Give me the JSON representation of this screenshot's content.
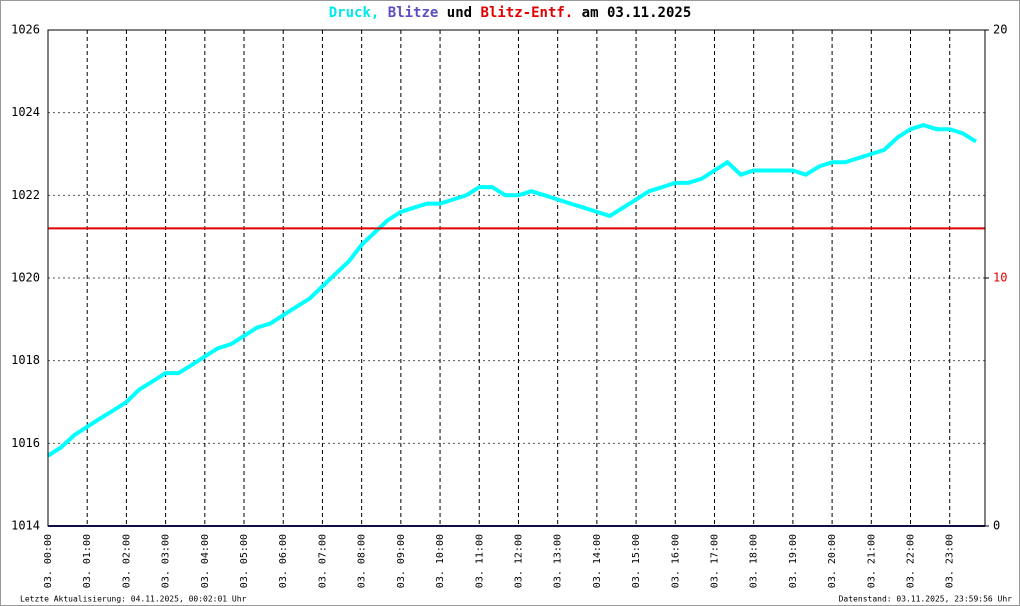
{
  "chart_data": {
    "type": "line",
    "title": [
      {
        "text": "Druck,",
        "color": "#00e8e8"
      },
      {
        "text": "Blitze",
        "color": "#5a4fc0"
      },
      {
        "text": "und",
        "color": "#000000"
      },
      {
        "text": "Blitz-Entf.",
        "color": "#e00000"
      },
      {
        "text": "am 03.11.2025",
        "color": "#000000"
      }
    ],
    "footer_left": "Letzte Aktualisierung: 04.11.2025, 00:02:01 Uhr",
    "footer_right": "Datenstand: 03.11.2025, 23:59:56 Uhr",
    "xlim": [
      0,
      23.9
    ],
    "xticks": [
      {
        "value": 0,
        "label": "03. 00:00"
      },
      {
        "value": 1,
        "label": "03. 01:00"
      },
      {
        "value": 2,
        "label": "03. 02:00"
      },
      {
        "value": 3,
        "label": "03. 03:00"
      },
      {
        "value": 4,
        "label": "03. 04:00"
      },
      {
        "value": 5,
        "label": "03. 05:00"
      },
      {
        "value": 6,
        "label": "03. 06:00"
      },
      {
        "value": 7,
        "label": "03. 07:00"
      },
      {
        "value": 8,
        "label": "03. 08:00"
      },
      {
        "value": 9,
        "label": "03. 09:00"
      },
      {
        "value": 10,
        "label": "03. 10:00"
      },
      {
        "value": 11,
        "label": "03. 11:00"
      },
      {
        "value": 12,
        "label": "03. 12:00"
      },
      {
        "value": 13,
        "label": "03. 13:00"
      },
      {
        "value": 14,
        "label": "03. 14:00"
      },
      {
        "value": 15,
        "label": "03. 15:00"
      },
      {
        "value": 16,
        "label": "03. 16:00"
      },
      {
        "value": 17,
        "label": "03. 17:00"
      },
      {
        "value": 18,
        "label": "03. 18:00"
      },
      {
        "value": 19,
        "label": "03. 19:00"
      },
      {
        "value": 20,
        "label": "03. 20:00"
      },
      {
        "value": 21,
        "label": "03. 21:00"
      },
      {
        "value": 22,
        "label": "03. 22:00"
      },
      {
        "value": 23,
        "label": "03. 23:00"
      }
    ],
    "ylim": [
      1014,
      1026
    ],
    "yticks": [
      1014,
      1016,
      1018,
      1020,
      1022,
      1024,
      1026
    ],
    "y2lim": [
      0,
      20
    ],
    "y2ticks": [
      0,
      10,
      20
    ],
    "y2tick_colors": [
      "#000000",
      "#e00000",
      "#000000"
    ],
    "grid": true,
    "series": [
      {
        "name": "Druck",
        "color": "#00ffff",
        "x": [
          0,
          0.33,
          0.67,
          1,
          1.33,
          1.67,
          2,
          2.33,
          2.67,
          3,
          3.33,
          3.67,
          4,
          4.33,
          4.67,
          5,
          5.33,
          5.67,
          6,
          6.33,
          6.67,
          7,
          7.33,
          7.67,
          8,
          8.33,
          8.67,
          9,
          9.33,
          9.67,
          10,
          10.33,
          10.67,
          11,
          11.33,
          11.67,
          12,
          12.33,
          12.67,
          13,
          13.33,
          13.67,
          14,
          14.33,
          14.67,
          15,
          15.33,
          15.67,
          16,
          16.33,
          16.67,
          17,
          17.33,
          17.67,
          18,
          18.33,
          18.67,
          19,
          19.33,
          19.67,
          20,
          20.33,
          20.67,
          21,
          21.33,
          21.67,
          22,
          22.33,
          22.67,
          23,
          23.33,
          23.67
        ],
        "values": [
          1015.7,
          1015.9,
          1016.2,
          1016.4,
          1016.6,
          1016.8,
          1017.0,
          1017.3,
          1017.5,
          1017.7,
          1017.7,
          1017.9,
          1018.1,
          1018.3,
          1018.4,
          1018.6,
          1018.8,
          1018.9,
          1019.1,
          1019.3,
          1019.5,
          1019.8,
          1020.1,
          1020.4,
          1020.8,
          1021.1,
          1021.4,
          1021.6,
          1021.7,
          1021.8,
          1021.8,
          1021.9,
          1022.0,
          1022.2,
          1022.2,
          1022.0,
          1022.0,
          1022.1,
          1022.0,
          1021.9,
          1021.8,
          1021.7,
          1021.6,
          1021.5,
          1021.7,
          1021.9,
          1022.1,
          1022.2,
          1022.3,
          1022.3,
          1022.4,
          1022.6,
          1022.8,
          1022.5,
          1022.6,
          1022.6,
          1022.6,
          1022.6,
          1022.5,
          1022.7,
          1022.8,
          1022.8,
          1022.9,
          1023.0,
          1023.1,
          1023.4,
          1023.6,
          1023.7,
          1023.6,
          1023.6,
          1023.5,
          1023.3
        ]
      },
      {
        "name": "Blitze",
        "color": "#202080",
        "axis": "y2",
        "x": [
          0,
          23.9
        ],
        "values": [
          0,
          0
        ]
      },
      {
        "name": "Blitz-Entf.",
        "color": "#e00000",
        "axis": "y2",
        "x": [
          0,
          23.9
        ],
        "values": [
          12,
          12
        ]
      }
    ]
  }
}
